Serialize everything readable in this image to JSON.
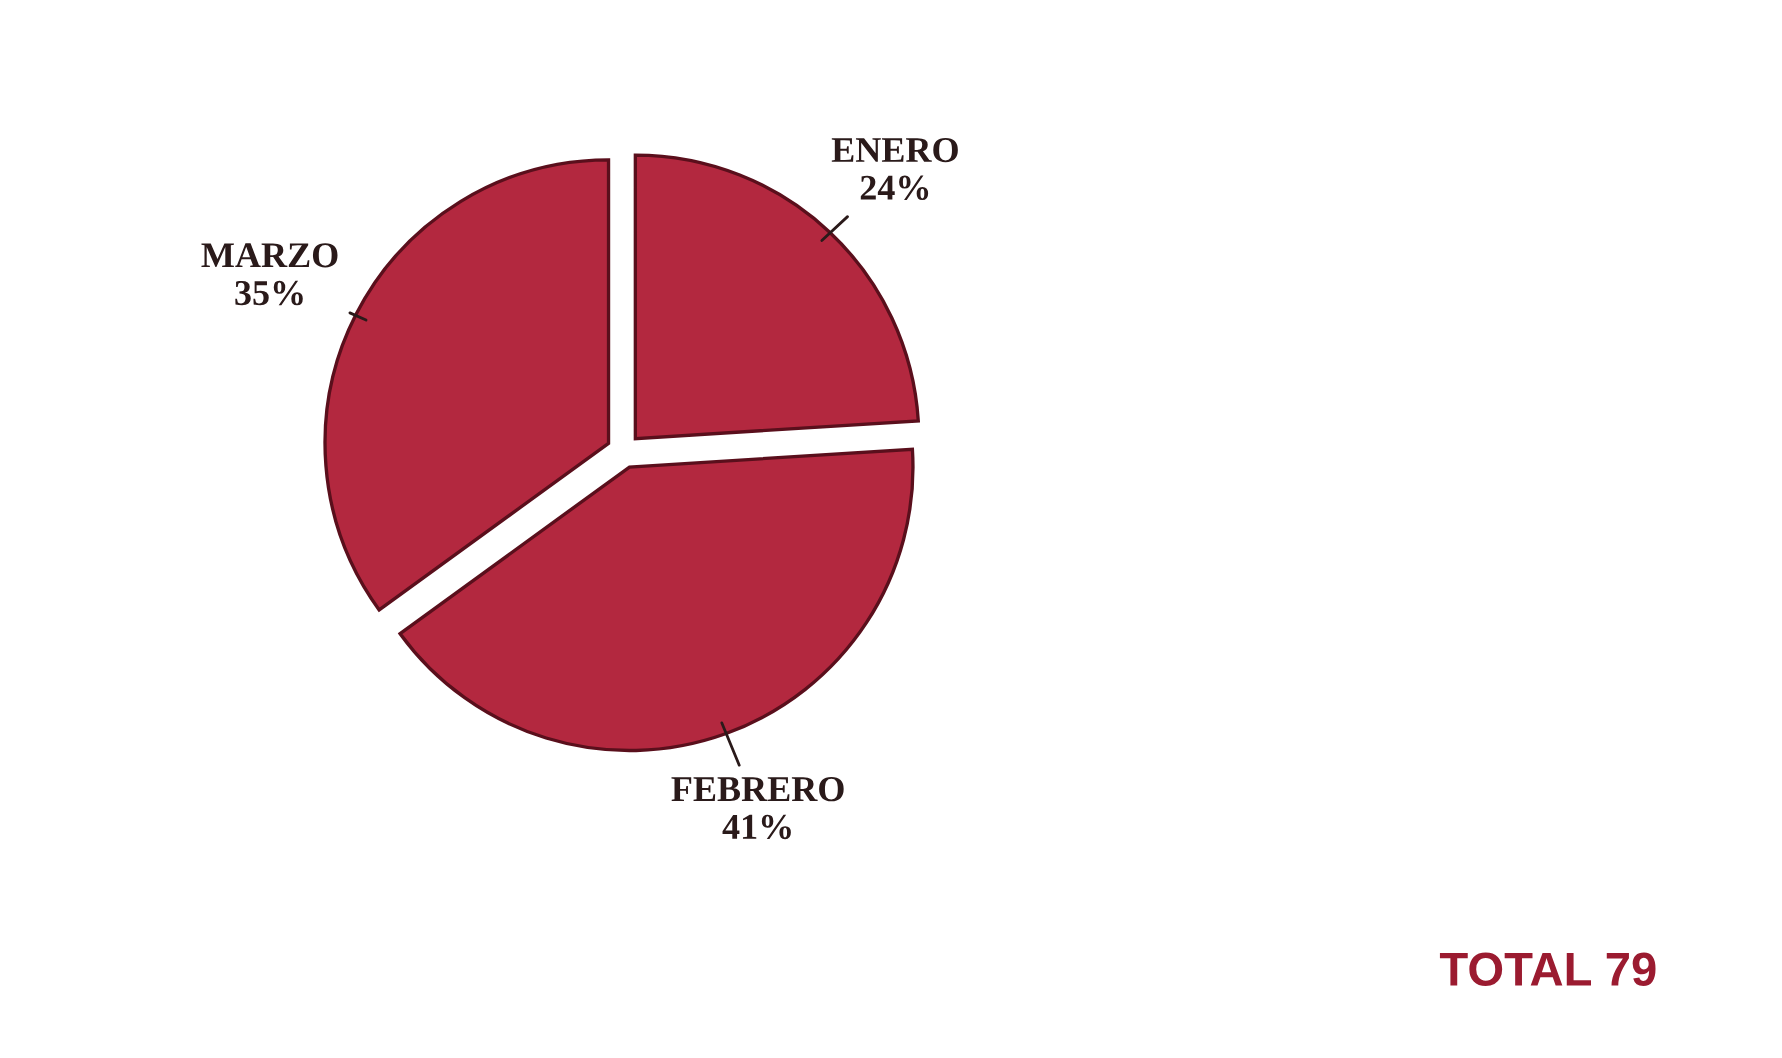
{
  "chart_data": {
    "type": "pie",
    "categories": [
      "ENERO",
      "FEBRERO",
      "MARZO"
    ],
    "values": [
      24,
      41,
      35
    ],
    "value_labels": [
      "24%",
      "41%",
      "35%"
    ],
    "colors": [
      "#b3283f",
      "#b3283f",
      "#b3283f"
    ],
    "annotations": [
      "TOTAL 79"
    ]
  }
}
